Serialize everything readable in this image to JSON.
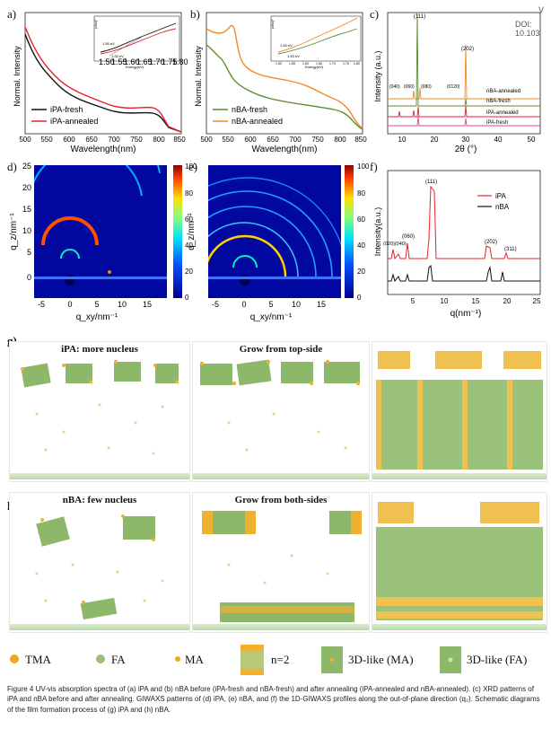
{
  "doi": "DOI: 10.103",
  "corner_v": "V",
  "panels": {
    "a": {
      "label": "a)",
      "xlabel": "Wavelength(nm)",
      "ylabel": "Normal. Intensity",
      "xticks": [
        "500",
        "550",
        "600",
        "650",
        "700",
        "750",
        "800",
        "850"
      ],
      "legend": [
        "iPA-fresh",
        "iPA-annealed"
      ],
      "inset": {
        "xlabel": "Energy(eV)",
        "ylabel": "(αhv)²",
        "ann1": "1.55 eV",
        "ann2": "1.53 eV",
        "xticks": [
          "1.50",
          "1.55",
          "1.60",
          "1.65",
          "1.70",
          "1.75",
          "1.80"
        ]
      }
    },
    "b": {
      "label": "b)",
      "xlabel": "Wavelength(nm)",
      "ylabel": "Normal. Intensity",
      "xticks": [
        "500",
        "550",
        "600",
        "650",
        "700",
        "750",
        "800",
        "850"
      ],
      "legend": [
        "nBA-fresh",
        "nBA-annealed"
      ],
      "inset": {
        "xlabel": "Energy(eV)",
        "ylabel": "(αhv)²",
        "ann1": "1.54 eV",
        "ann2": "1.53 eV",
        "xticks": [
          "1.50",
          "1.55",
          "1.60",
          "1.65",
          "1.70",
          "1.75",
          "1.80"
        ]
      }
    },
    "c": {
      "label": "c)",
      "xlabel": "2θ (°)",
      "ylabel": "Intensity (a.u.)",
      "xticks": [
        "10",
        "20",
        "30",
        "40",
        "50"
      ],
      "peaks": [
        "(111)",
        "(202)",
        "(040)",
        "(060)",
        "(080)",
        "(0120)"
      ],
      "series": [
        "nBA-annealed",
        "nBA-fresh",
        "iPA-annealed",
        "iPA-fresh"
      ]
    },
    "d": {
      "label": "d)",
      "ylabel": "q_z/nm⁻¹",
      "xlabel": "q_xy/nm⁻¹",
      "yticks": [
        "25",
        "20",
        "15",
        "10",
        "5",
        "0"
      ],
      "xticks": [
        "-5",
        "0",
        "5",
        "10",
        "15"
      ],
      "cbar": [
        "100",
        "80",
        "60",
        "40",
        "20",
        "0"
      ]
    },
    "e": {
      "label": "e)",
      "ylabel": "q_z/nm⁻¹",
      "xlabel": "q_xy/nm⁻¹",
      "xticks": [
        "-5",
        "0",
        "5",
        "10",
        "15"
      ],
      "cbar": [
        "100",
        "80",
        "60",
        "40",
        "20",
        "0"
      ]
    },
    "f": {
      "label": "f)",
      "xlabel": "q(nm⁻¹)",
      "ylabel": "Intensity(a.u.)",
      "xticks": [
        "5",
        "10",
        "15",
        "20",
        "25"
      ],
      "peaks": [
        "(111)",
        "(060)",
        "(020)(040)",
        "(202)",
        "(311)"
      ],
      "legend": [
        "iPA",
        "nBA"
      ]
    }
  },
  "schematic": {
    "g": {
      "label": "g)",
      "titles": [
        "iPA: more nucleus",
        "Grow from top-side"
      ]
    },
    "h": {
      "label": "h)",
      "titles": [
        "nBA: few nucleus",
        "Grow from both-sides"
      ]
    }
  },
  "legend": [
    "TMA",
    "FA",
    "MA",
    "n=2",
    "3D-like (MA)",
    "3D-like (FA)"
  ],
  "caption": "Figure 4 UV-vis absorption spectra of (a) iPA and (b) nBA before (iPA-fresh and nBA-fresh) and after annealing (iPA-annealed and nBA-annealed). (c) XRD patterns of iPA and nBA before and after annealing. GIWAXS patterns of (d) iPA, (e) nBA, and (f) the 1D-GIWAXS profiles along the out-of-plane direction (q₂). Schematic diagrams of the film formation process of (g) iPA and (h) nBA.",
  "colors": {
    "red": "#e8202a",
    "black": "#111111",
    "green": "#5b8a2a",
    "orange": "#f08a24",
    "pink": "#e0409a"
  }
}
